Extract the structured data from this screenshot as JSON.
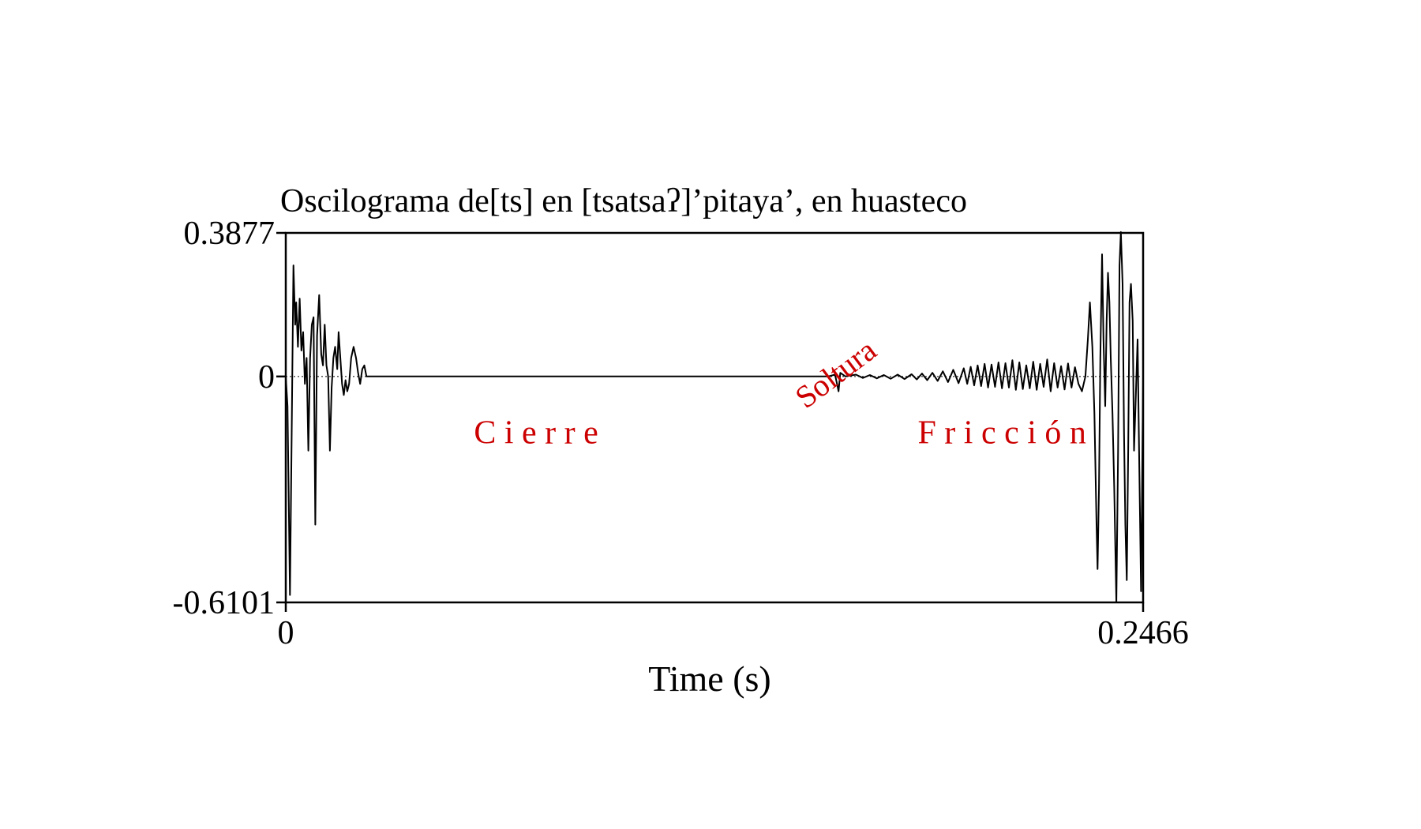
{
  "chart_data": {
    "type": "line",
    "title": "Oscilograma de[ts] en [tsatsaʔ]’pitaya’, en huasteco",
    "xlabel": "Time (s)",
    "ylabel": "",
    "xlim": [
      0,
      0.2466
    ],
    "ylim": [
      -0.6101,
      0.3877
    ],
    "x_ticks": [
      "0",
      "0.2466"
    ],
    "y_ticks": [
      "0.3877",
      "0",
      "-0.6101"
    ],
    "zero_line": "dotted",
    "annotations": [
      {
        "label": "C i e r r e",
        "x": 0.072,
        "y": -0.18,
        "color": "#cc0000",
        "rotation": 0
      },
      {
        "label": "Soltura",
        "x": 0.16,
        "y": -0.015,
        "color": "#cc0000",
        "rotation": -37
      },
      {
        "label": "F r i c c i ó n",
        "x": 0.206,
        "y": -0.18,
        "color": "#cc0000",
        "rotation": 0
      }
    ],
    "series": [
      {
        "color": "#000000",
        "points": [
          [
            0.0,
            0.0
          ],
          [
            0.0005,
            -0.08
          ],
          [
            0.0012,
            -0.59
          ],
          [
            0.0017,
            -0.15
          ],
          [
            0.0022,
            0.3
          ],
          [
            0.0027,
            0.14
          ],
          [
            0.003,
            0.2
          ],
          [
            0.0035,
            0.08
          ],
          [
            0.004,
            0.21
          ],
          [
            0.0045,
            0.07
          ],
          [
            0.005,
            0.12
          ],
          [
            0.0055,
            -0.02
          ],
          [
            0.006,
            0.05
          ],
          [
            0.0065,
            -0.2
          ],
          [
            0.007,
            0.05
          ],
          [
            0.0075,
            0.14
          ],
          [
            0.008,
            0.16
          ],
          [
            0.0085,
            -0.4
          ],
          [
            0.009,
            0.11
          ],
          [
            0.0096,
            0.22
          ],
          [
            0.0102,
            0.06
          ],
          [
            0.0107,
            0.03
          ],
          [
            0.0112,
            0.14
          ],
          [
            0.0117,
            0.03
          ],
          [
            0.0122,
            0.0
          ],
          [
            0.0127,
            -0.2
          ],
          [
            0.0132,
            -0.03
          ],
          [
            0.0137,
            0.05
          ],
          [
            0.0142,
            0.08
          ],
          [
            0.0148,
            0.02
          ],
          [
            0.0152,
            0.12
          ],
          [
            0.0157,
            0.05
          ],
          [
            0.0162,
            -0.02
          ],
          [
            0.0167,
            -0.05
          ],
          [
            0.0172,
            -0.01
          ],
          [
            0.0177,
            -0.04
          ],
          [
            0.0182,
            -0.02
          ],
          [
            0.0188,
            0.05
          ],
          [
            0.0195,
            0.08
          ],
          [
            0.0202,
            0.05
          ],
          [
            0.0208,
            0.01
          ],
          [
            0.0214,
            -0.02
          ],
          [
            0.022,
            0.02
          ],
          [
            0.0226,
            0.03
          ],
          [
            0.0232,
            0.0
          ],
          [
            0.05,
            0.0
          ],
          [
            0.1,
            0.0
          ],
          [
            0.15,
            0.0
          ],
          [
            0.156,
            0.0
          ],
          [
            0.158,
            0.005
          ],
          [
            0.159,
            -0.04
          ],
          [
            0.1595,
            0.01
          ],
          [
            0.161,
            0.0
          ],
          [
            0.164,
            0.005
          ],
          [
            0.166,
            -0.004
          ],
          [
            0.168,
            0.004
          ],
          [
            0.17,
            -0.005
          ],
          [
            0.172,
            0.004
          ],
          [
            0.174,
            -0.006
          ],
          [
            0.176,
            0.005
          ],
          [
            0.178,
            -0.007
          ],
          [
            0.18,
            0.006
          ],
          [
            0.1815,
            -0.008
          ],
          [
            0.183,
            0.008
          ],
          [
            0.1845,
            -0.01
          ],
          [
            0.186,
            0.01
          ],
          [
            0.1875,
            -0.012
          ],
          [
            0.189,
            0.014
          ],
          [
            0.1905,
            -0.015
          ],
          [
            0.192,
            0.018
          ],
          [
            0.1935,
            -0.018
          ],
          [
            0.195,
            0.022
          ],
          [
            0.196,
            -0.02
          ],
          [
            0.197,
            0.026
          ],
          [
            0.198,
            -0.024
          ],
          [
            0.199,
            0.03
          ],
          [
            0.2,
            -0.026
          ],
          [
            0.201,
            0.034
          ],
          [
            0.202,
            -0.03
          ],
          [
            0.203,
            0.032
          ],
          [
            0.204,
            -0.028
          ],
          [
            0.205,
            0.038
          ],
          [
            0.206,
            -0.032
          ],
          [
            0.207,
            0.036
          ],
          [
            0.208,
            -0.03
          ],
          [
            0.209,
            0.044
          ],
          [
            0.21,
            -0.036
          ],
          [
            0.211,
            0.038
          ],
          [
            0.212,
            -0.034
          ],
          [
            0.213,
            0.03
          ],
          [
            0.214,
            -0.032
          ],
          [
            0.215,
            0.04
          ],
          [
            0.216,
            -0.036
          ],
          [
            0.217,
            0.034
          ],
          [
            0.218,
            -0.028
          ],
          [
            0.219,
            0.046
          ],
          [
            0.22,
            -0.04
          ],
          [
            0.221,
            0.036
          ],
          [
            0.222,
            -0.03
          ],
          [
            0.223,
            0.028
          ],
          [
            0.224,
            -0.035
          ],
          [
            0.225,
            0.035
          ],
          [
            0.226,
            -0.03
          ],
          [
            0.227,
            0.025
          ],
          [
            0.228,
            -0.02
          ],
          [
            0.229,
            -0.04
          ],
          [
            0.23,
            0.0
          ],
          [
            0.2307,
            0.1
          ],
          [
            0.2313,
            0.2
          ],
          [
            0.232,
            0.08
          ],
          [
            0.2326,
            -0.1
          ],
          [
            0.2332,
            -0.4
          ],
          [
            0.2335,
            -0.52
          ],
          [
            0.2339,
            -0.3
          ],
          [
            0.2343,
            0.05
          ],
          [
            0.2348,
            0.33
          ],
          [
            0.2352,
            0.1
          ],
          [
            0.2357,
            -0.08
          ],
          [
            0.2361,
            0.15
          ],
          [
            0.2365,
            0.28
          ],
          [
            0.2369,
            0.2
          ],
          [
            0.2373,
            0.05
          ],
          [
            0.2378,
            -0.1
          ],
          [
            0.2383,
            -0.3
          ],
          [
            0.2389,
            -0.61
          ],
          [
            0.2394,
            -0.2
          ],
          [
            0.2398,
            0.3
          ],
          [
            0.2402,
            0.39
          ],
          [
            0.2407,
            0.25
          ],
          [
            0.2411,
            -0.15
          ],
          [
            0.2415,
            -0.4
          ],
          [
            0.2419,
            -0.55
          ],
          [
            0.2423,
            -0.2
          ],
          [
            0.2427,
            0.2
          ],
          [
            0.2431,
            0.25
          ],
          [
            0.2436,
            0.15
          ],
          [
            0.244,
            -0.2
          ],
          [
            0.2445,
            -0.05
          ],
          [
            0.245,
            0.1
          ],
          [
            0.2455,
            -0.25
          ],
          [
            0.246,
            -0.58
          ],
          [
            0.2466,
            0.0
          ]
        ]
      }
    ]
  }
}
